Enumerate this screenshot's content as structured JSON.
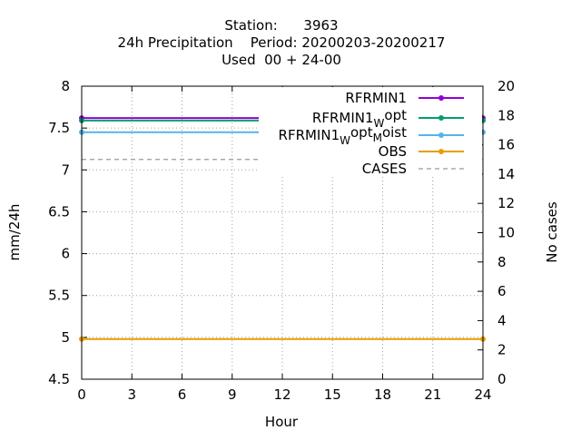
{
  "chart_data": {
    "type": "line",
    "title_lines": [
      "Station:      3963",
      "24h Precipitation    Period: 20200203-20200217",
      "Used  00 + 24-00"
    ],
    "xlabel": "Hour",
    "ylabel": "mm/24h",
    "y2label": "No cases",
    "xlim": [
      0,
      24
    ],
    "ylim": [
      4.5,
      8
    ],
    "y2lim": [
      0,
      20
    ],
    "xticks": [
      "0",
      "3",
      "6",
      "9",
      "12",
      "15",
      "18",
      "21",
      "24"
    ],
    "yticks": [
      "4.5",
      "5",
      "5.5",
      "6",
      "6.5",
      "7",
      "7.5",
      "8"
    ],
    "y2ticks": [
      "0",
      "2",
      "4",
      "6",
      "8",
      "10",
      "12",
      "14",
      "16",
      "18",
      "20"
    ],
    "grid": true,
    "legend_position": "top-right",
    "series": [
      {
        "name": "RFRMIN1",
        "legend_main": "RFRMIN1",
        "legend_sub": "",
        "legend_tail": "",
        "color": "#9400d3",
        "axis": "y",
        "dashed": false,
        "x": [
          0,
          24
        ],
        "y": [
          7.62,
          7.62
        ]
      },
      {
        "name": "RFRMIN1_W_opt",
        "legend_main": "RFRMIN1",
        "legend_sub": "W",
        "legend_tail": "opt",
        "color": "#009e73",
        "axis": "y",
        "dashed": false,
        "x": [
          0,
          24
        ],
        "y": [
          7.59,
          7.59
        ]
      },
      {
        "name": "RFRMIN1_W_opt_M_oist",
        "legend_main": "RFRMIN1",
        "legend_sub": "W",
        "legend_tail": "opt",
        "legend_sub2": "M",
        "legend_tail2": "oist",
        "color": "#56b4e9",
        "axis": "y",
        "dashed": false,
        "x": [
          0,
          24
        ],
        "y": [
          7.45,
          7.45
        ]
      },
      {
        "name": "OBS",
        "legend_main": "OBS",
        "legend_sub": "",
        "legend_tail": "",
        "color": "#e69f00",
        "axis": "y",
        "dashed": false,
        "x": [
          0,
          24
        ],
        "y": [
          4.98,
          4.98
        ]
      },
      {
        "name": "CASES",
        "legend_main": "CASES",
        "legend_sub": "",
        "legend_tail": "",
        "color": "#999999",
        "axis": "y2",
        "dashed": true,
        "x": [
          0,
          24
        ],
        "y": [
          15,
          15
        ]
      }
    ]
  }
}
